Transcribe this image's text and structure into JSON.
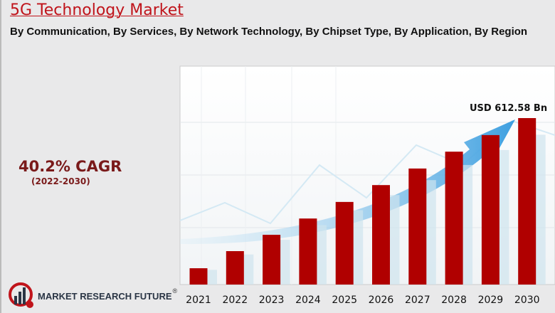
{
  "header": {
    "title": "5G Technology Market",
    "subtitle": "By Communication, By Services, By Network Technology, By Chipset Type, By Application, By Region"
  },
  "cagr": {
    "value": "40.2% CAGR",
    "period": "(2022-2030)"
  },
  "logo": {
    "text": "MARKET RESEARCH FUTURE",
    "registered": "®"
  },
  "colors": {
    "bar": "#b00000",
    "title": "#c0141b",
    "arrow": "#4aa6df"
  },
  "chart_data": {
    "type": "bar",
    "title": "5G Technology Market",
    "categories": [
      "2021",
      "2022",
      "2023",
      "2024",
      "2025",
      "2026",
      "2027",
      "2028",
      "2029",
      "2030"
    ],
    "values": [
      60,
      123,
      183,
      243,
      304,
      366,
      427,
      489,
      550,
      612.58
    ],
    "ylim": [
      0,
      800
    ],
    "xlabel": "",
    "ylabel": "",
    "annotation": "USD 612.58 Bn",
    "grid": true
  }
}
